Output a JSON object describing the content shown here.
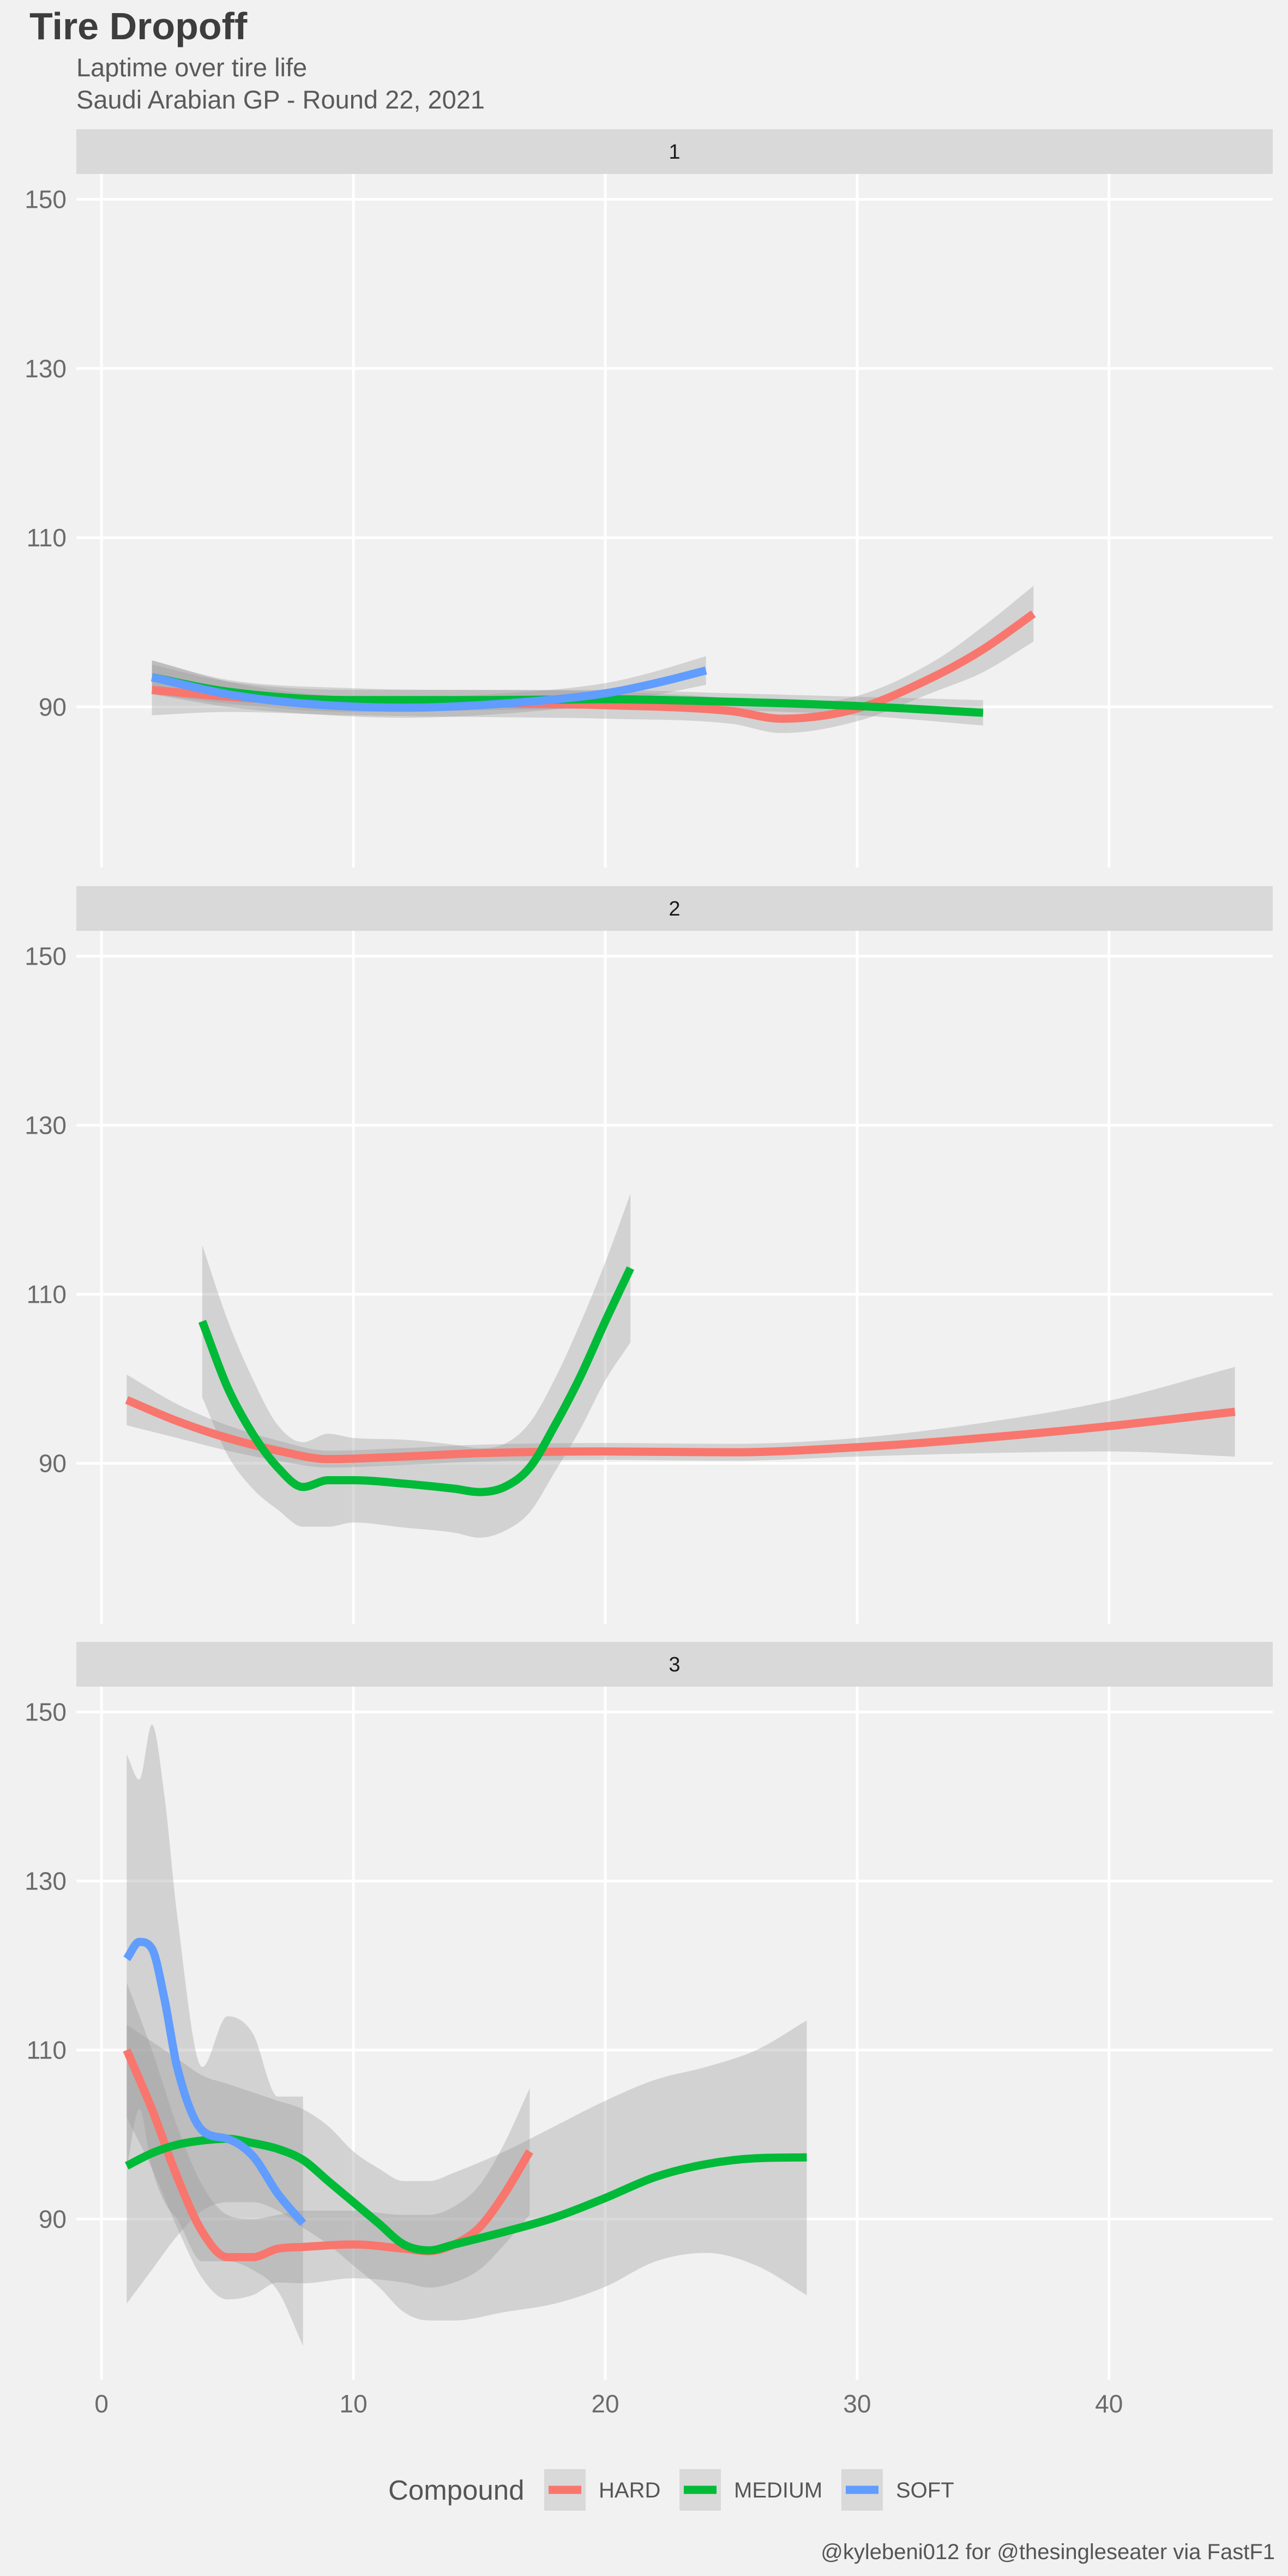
{
  "chart_data": {
    "type": "line",
    "title": "Tire Dropoff",
    "subtitle_lines": [
      "Laptime over tire life",
      "Saudi Arabian GP - Round 22, 2021"
    ],
    "caption": "@kylebeni012 for @thesingleseater via FastF1",
    "xlabel": "",
    "ylabel": "",
    "xlim": [
      -1,
      46.5
    ],
    "ylim": [
      71,
      153
    ],
    "x_ticks": [
      0,
      10,
      20,
      30,
      40
    ],
    "x_tick_labels": [
      "0",
      "10",
      "20",
      "30",
      "40"
    ],
    "y_ticks": [
      90,
      110,
      130,
      150
    ],
    "y_tick_labels": [
      "90",
      "110",
      "130",
      "150"
    ],
    "grid": true,
    "smoothed_with_confidence_band": true,
    "legend": {
      "title": "Compound",
      "position": "bottom",
      "entries": [
        {
          "name": "HARD",
          "color": "#f8766d"
        },
        {
          "name": "MEDIUM",
          "color": "#00ba38"
        },
        {
          "name": "SOFT",
          "color": "#619cff"
        }
      ]
    },
    "colors": {
      "background": "#f1f1f1",
      "strip": "#d9d9d9",
      "band": "#999999",
      "grid": "#ffffff",
      "HARD": "#f8766d",
      "MEDIUM": "#00ba38",
      "SOFT": "#619cff"
    },
    "facets": [
      {
        "label": "1",
        "series": [
          {
            "name": "HARD",
            "x": [
              2,
              5,
              10,
              15,
              20,
              25,
              27,
              30,
              33,
              35,
              37
            ],
            "y": [
              92,
              91.2,
              90.5,
              90.4,
              90.2,
              89.5,
              88.6,
              89.8,
              93.5,
              96.8,
              101
            ],
            "upper": [
              95,
              93,
              92,
              92,
              91.8,
              91,
              90.3,
              91.3,
              95.3,
              99.5,
              104.3
            ],
            "lower": [
              89,
              89.4,
              89,
              88.8,
              88.6,
              88,
              86.9,
              88.3,
              91.7,
              94.1,
              97.7
            ]
          },
          {
            "name": "MEDIUM",
            "x": [
              2,
              5,
              10,
              15,
              20,
              25,
              30,
              35
            ],
            "y": [
              93.5,
              91.8,
              90.8,
              90.8,
              90.9,
              90.6,
              90.1,
              89.3
            ],
            "upper": [
              95.5,
              93.2,
              92.2,
              92,
              92,
              91.6,
              91.2,
              90.8
            ],
            "lower": [
              91.5,
              90.4,
              89.4,
              89.6,
              89.8,
              89.6,
              89,
              87.8
            ]
          },
          {
            "name": "SOFT",
            "x": [
              2,
              5,
              8,
              12,
              16,
              20,
              22,
              24
            ],
            "y": [
              93.5,
              91.5,
              90.4,
              89.9,
              90.4,
              91.6,
              92.8,
              94.3
            ],
            "upper": [
              95.5,
              93,
              91.6,
              91.1,
              91.6,
              92.8,
              94.2,
              96
            ],
            "lower": [
              91.5,
              90,
              89.2,
              88.7,
              89.2,
              90.4,
              91.4,
              92.6
            ]
          }
        ]
      },
      {
        "label": "2",
        "series": [
          {
            "name": "HARD",
            "x": [
              1,
              3,
              5,
              7,
              9,
              12,
              15,
              20,
              25,
              30,
              35,
              40,
              45
            ],
            "y": [
              97.5,
              95,
              93,
              91.5,
              90.5,
              90.8,
              91.2,
              91.4,
              91.3,
              91.9,
              93,
              94.4,
              96.1
            ],
            "upper": [
              100.5,
              97,
              94.5,
              92.7,
              91.5,
              91.8,
              92.2,
              92.4,
              92.3,
              93,
              94.8,
              97.4,
              101.4
            ],
            "lower": [
              94.5,
              93,
              91.5,
              90.3,
              89.5,
              89.8,
              90.2,
              90.4,
              90.3,
              90.8,
              91.2,
              91.4,
              90.8
            ]
          },
          {
            "name": "MEDIUM",
            "x": [
              4,
              5,
              6,
              7,
              8,
              9,
              10,
              12,
              14,
              15,
              16,
              17,
              18,
              19,
              20,
              21
            ],
            "y": [
              106.8,
              99,
              93.5,
              89.5,
              87.2,
              88,
              88,
              87.6,
              87,
              86.6,
              87.2,
              89.5,
              94.5,
              100.2,
              106.8,
              113.1
            ],
            "upper": [
              115.8,
              107,
              100,
              94.5,
              92.5,
              93.5,
              93,
              92.8,
              92.2,
              91.8,
              92.3,
              94.8,
              100,
              106.5,
              113.8,
              121.9
            ],
            "lower": [
              97.8,
              91,
              87,
              84.5,
              82.5,
              82.5,
              83,
              82.4,
              81.8,
              81.2,
              82,
              84.2,
              89,
              94,
              99.8,
              104.3
            ]
          }
        ]
      },
      {
        "label": "3",
        "series": [
          {
            "name": "HARD",
            "x": [
              1,
              2,
              3,
              4,
              5,
              6,
              7,
              8,
              10,
              12,
              13,
              14,
              15,
              16,
              17
            ],
            "y": [
              110,
              103,
              95,
              88.5,
              85.5,
              85.5,
              86.5,
              86.7,
              87,
              86.5,
              86.2,
              87,
              89,
              93,
              98
            ],
            "upper": [
              118,
              110,
              101,
              94,
              90.5,
              90,
              90.5,
              91,
              91,
              90.5,
              90.5,
              91.5,
              94,
              99,
              105.5
            ],
            "lower": [
              102,
              96,
              89,
              83,
              80.5,
              81,
              82.5,
              82.4,
              83,
              82.5,
              81.9,
              82.5,
              84,
              87,
              90.5
            ]
          },
          {
            "name": "MEDIUM",
            "x": [
              1,
              2,
              3,
              4,
              5,
              6,
              7,
              8,
              9,
              10,
              11,
              12,
              13,
              14,
              16,
              18,
              20,
              22,
              24,
              26,
              28
            ],
            "y": [
              96.3,
              97.8,
              98.8,
              99.3,
              99.5,
              99,
              98.3,
              97,
              94.5,
              92,
              89.5,
              87,
              86.3,
              87,
              88.5,
              90.2,
              92.5,
              95,
              96.5,
              97.2,
              97.3
            ],
            "upper": [
              113,
              111,
              109,
              107,
              106,
              105,
              104,
              103,
              101,
              98,
              96,
              94.5,
              94.5,
              95.5,
              98,
              101,
              104,
              106.5,
              108,
              110,
              113.5
            ],
            "lower": [
              80,
              84,
              88,
              91,
              92,
              92,
              91,
              89,
              87,
              84.5,
              82,
              79,
              78,
              78,
              79,
              80,
              82,
              85,
              86,
              84.5,
              81
            ]
          },
          {
            "name": "SOFT",
            "x": [
              1,
              1.5,
              2,
              2.5,
              3,
              4,
              5,
              6,
              7,
              8
            ],
            "y": [
              120.8,
              122.8,
              122,
              116,
              108,
              100.5,
              99.5,
              97.5,
              93,
              89.5
            ],
            "upper": [
              145,
              142,
              148.5,
              140,
              126,
              108,
              114,
              112,
              104.5,
              104.5
            ],
            "lower": [
              96,
              103,
              96,
              92,
              90,
              85,
              85,
              84,
              81.5,
              75
            ]
          }
        ]
      }
    ]
  }
}
